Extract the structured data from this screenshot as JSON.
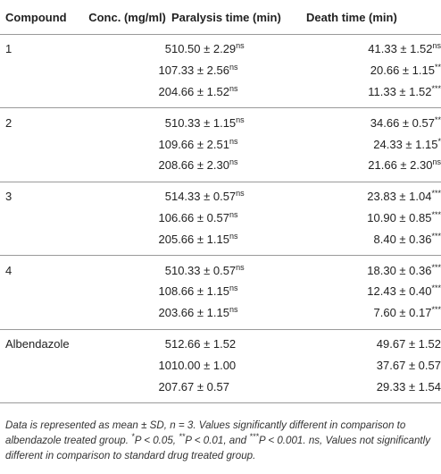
{
  "table": {
    "headers": [
      "Compound",
      "Conc. (mg/ml)",
      "Paralysis time (min)",
      "Death time (min)"
    ],
    "groups": [
      {
        "compound": "1",
        "rows": [
          {
            "conc": "5",
            "paralysis": "10.50 ± 2.29",
            "paralysis_sup": "ns",
            "death": "41.33 ± 1.52",
            "death_sup": "ns"
          },
          {
            "conc": "10",
            "paralysis": "7.33 ± 2.56",
            "paralysis_sup": "ns",
            "death": "20.66 ± 1.15",
            "death_sup": "**"
          },
          {
            "conc": "20",
            "paralysis": "4.66 ± 1.52",
            "paralysis_sup": "ns",
            "death": "11.33 ± 1.52",
            "death_sup": "***"
          }
        ]
      },
      {
        "compound": "2",
        "rows": [
          {
            "conc": "5",
            "paralysis": "10.33 ± 1.15",
            "paralysis_sup": "ns",
            "death": "34.66 ± 0.57",
            "death_sup": "**"
          },
          {
            "conc": "10",
            "paralysis": "9.66 ± 2.51",
            "paralysis_sup": "ns",
            "death": "24.33 ± 1.15",
            "death_sup": "*"
          },
          {
            "conc": "20",
            "paralysis": "8.66 ± 2.30",
            "paralysis_sup": "ns",
            "death": "21.66 ± 2.30",
            "death_sup": "ns"
          }
        ]
      },
      {
        "compound": "3",
        "rows": [
          {
            "conc": "5",
            "paralysis": "14.33 ± 0.57",
            "paralysis_sup": "ns",
            "death": "23.83 ± 1.04",
            "death_sup": "***"
          },
          {
            "conc": "10",
            "paralysis": "6.66 ± 0.57",
            "paralysis_sup": "ns",
            "death": "10.90 ± 0.85",
            "death_sup": "***"
          },
          {
            "conc": "20",
            "paralysis": "5.66 ± 1.15",
            "paralysis_sup": "ns",
            "death": "8.40 ± 0.36",
            "death_sup": "***"
          }
        ]
      },
      {
        "compound": "4",
        "rows": [
          {
            "conc": "5",
            "paralysis": "10.33 ± 0.57",
            "paralysis_sup": "ns",
            "death": "18.30 ± 0.36",
            "death_sup": "***"
          },
          {
            "conc": "10",
            "paralysis": "8.66 ± 1.15",
            "paralysis_sup": "ns",
            "death": "12.43 ± 0.40",
            "death_sup": "***"
          },
          {
            "conc": "20",
            "paralysis": "3.66 ± 1.15",
            "paralysis_sup": "ns",
            "death": "7.60 ± 0.17",
            "death_sup": "***"
          }
        ]
      },
      {
        "compound": "Albendazole",
        "rows": [
          {
            "conc": "5",
            "paralysis": "12.66 ± 1.52",
            "paralysis_sup": "",
            "death": "49.67 ± 1.52",
            "death_sup": ""
          },
          {
            "conc": "10",
            "paralysis": "10.00 ± 1.00",
            "paralysis_sup": "",
            "death": "37.67 ± 0.57",
            "death_sup": ""
          },
          {
            "conc": "20",
            "paralysis": "7.67 ± 0.57",
            "paralysis_sup": "",
            "death": "29.33 ± 1.54",
            "death_sup": ""
          }
        ]
      }
    ]
  },
  "footnote": {
    "part1": "Data is represented as mean ± SD, n = 3. Values significantly different in comparison to albendazole treated group. ",
    "sym1": "*",
    "part2": "P < 0.05, ",
    "sym2": "**",
    "part3": "P < 0.01, and ",
    "sym3": "***",
    "part4": "P < 0.001. ns, Values not significantly different in comparison to standard drug treated group."
  }
}
